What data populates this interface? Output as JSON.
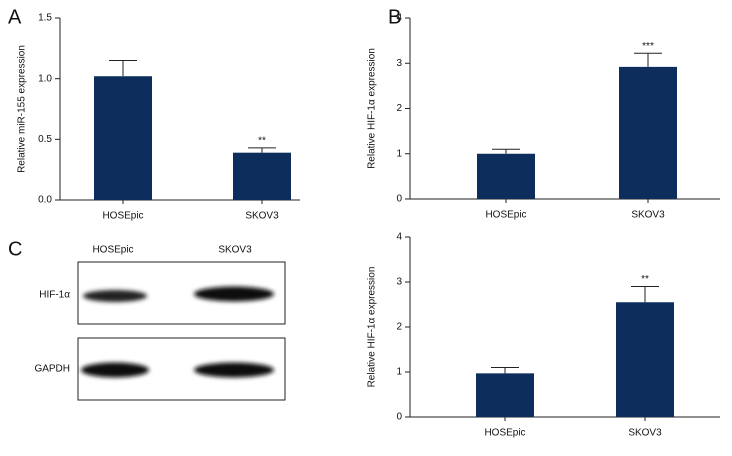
{
  "chart_data": [
    {
      "type": "bar",
      "panel": "A",
      "ylabel": "Relative miR-155 expression",
      "categories": [
        "HOSEpic",
        "SKOV3"
      ],
      "values": [
        1.02,
        0.39
      ],
      "error": [
        0.13,
        0.04
      ],
      "significance": [
        null,
        "**"
      ],
      "color": "#0d2d5c",
      "ylim": [
        0,
        1.5
      ],
      "yticks": [
        {
          "value": 0,
          "label": "0.0"
        },
        0.5,
        {
          "value": 1,
          "label": "1.0"
        },
        1.5
      ]
    },
    {
      "type": "bar",
      "panel": "B",
      "ylabel": "Relative HIF-1α expression",
      "categories": [
        "HOSEpic",
        "SKOV3"
      ],
      "values": [
        1.0,
        2.92
      ],
      "error": [
        0.1,
        0.3
      ],
      "significance": [
        null,
        "***"
      ],
      "color": "#0d2d5c",
      "ylim": [
        0,
        4
      ],
      "yticks": [
        0,
        1,
        2,
        3,
        4
      ]
    },
    {
      "type": "bar",
      "ylabel": "Relative HIF-1α expression",
      "categories": [
        "HOSEpic",
        "SKOV3"
      ],
      "values": [
        0.97,
        2.55
      ],
      "error": [
        0.13,
        0.35
      ],
      "significance": [
        null,
        "**"
      ],
      "color": "#0d2d5c",
      "ylim": [
        0,
        4
      ],
      "yticks": [
        0,
        1,
        2,
        3,
        4
      ]
    }
  ],
  "blot": {
    "panel": "C",
    "columns": [
      "HOSEpic",
      "SKOV3"
    ],
    "rows": [
      "HIF-1α",
      "GAPDH"
    ]
  }
}
